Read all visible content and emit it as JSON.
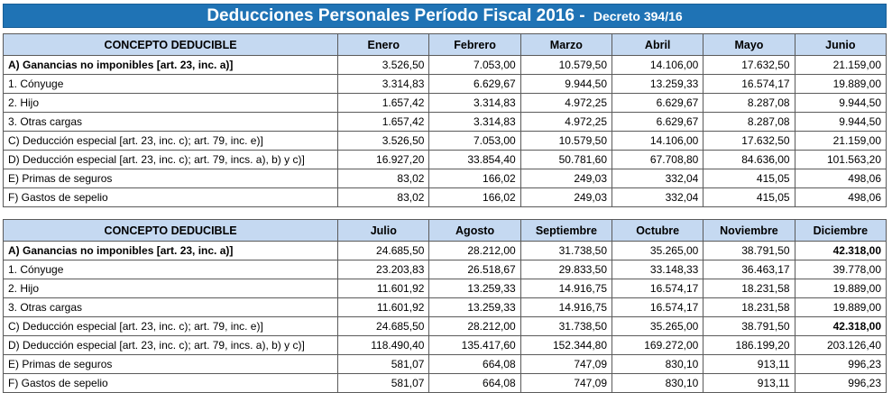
{
  "title": {
    "main": "Deducciones Personales Período Fiscal 2016 - ",
    "sub": "Decreto 394/16"
  },
  "concept_header": "CONCEPTO DEDUCIBLE",
  "concepts": [
    "A) Ganancias no imponibles [art. 23, inc. a)]",
    "1. Cónyuge",
    "2. Hijo",
    "3. Otras cargas",
    "C) Deducción especial [art. 23, inc. c); art. 79, inc. e)]",
    "D) Deducción especial [art. 23, inc. c); art. 79, incs. a), b) y c)]",
    "E) Primas de seguros",
    "F) Gastos de sepelio"
  ],
  "table1": {
    "months": [
      "Enero",
      "Febrero",
      "Marzo",
      "Abril",
      "Mayo",
      "Junio"
    ],
    "rows": [
      [
        "3.526,50",
        "7.053,00",
        "10.579,50",
        "14.106,00",
        "17.632,50",
        "21.159,00"
      ],
      [
        "3.314,83",
        "6.629,67",
        "9.944,50",
        "13.259,33",
        "16.574,17",
        "19.889,00"
      ],
      [
        "1.657,42",
        "3.314,83",
        "4.972,25",
        "6.629,67",
        "8.287,08",
        "9.944,50"
      ],
      [
        "1.657,42",
        "3.314,83",
        "4.972,25",
        "6.629,67",
        "8.287,08",
        "9.944,50"
      ],
      [
        "3.526,50",
        "7.053,00",
        "10.579,50",
        "14.106,00",
        "17.632,50",
        "21.159,00"
      ],
      [
        "16.927,20",
        "33.854,40",
        "50.781,60",
        "67.708,80",
        "84.636,00",
        "101.563,20"
      ],
      [
        "83,02",
        "166,02",
        "249,03",
        "332,04",
        "415,05",
        "498,06"
      ],
      [
        "83,02",
        "166,02",
        "249,03",
        "332,04",
        "415,05",
        "498,06"
      ]
    ]
  },
  "table2": {
    "months": [
      "Julio",
      "Agosto",
      "Septiembre",
      "Octubre",
      "Noviembre",
      "Diciembre"
    ],
    "rows": [
      [
        "24.685,50",
        "28.212,00",
        "31.738,50",
        "35.265,00",
        "38.791,50",
        "42.318,00"
      ],
      [
        "23.203,83",
        "26.518,67",
        "29.833,50",
        "33.148,33",
        "36.463,17",
        "39.778,00"
      ],
      [
        "11.601,92",
        "13.259,33",
        "14.916,75",
        "16.574,17",
        "18.231,58",
        "19.889,00"
      ],
      [
        "11.601,92",
        "13.259,33",
        "14.916,75",
        "16.574,17",
        "18.231,58",
        "19.889,00"
      ],
      [
        "24.685,50",
        "28.212,00",
        "31.738,50",
        "35.265,00",
        "38.791,50",
        "42.318,00"
      ],
      [
        "118.490,40",
        "135.417,60",
        "152.344,80",
        "169.272,00",
        "186.199,20",
        "203.126,40"
      ],
      [
        "581,07",
        "664,08",
        "747,09",
        "830,10",
        "913,11",
        "996,23"
      ],
      [
        "581,07",
        "664,08",
        "747,09",
        "830,10",
        "913,11",
        "996,23"
      ]
    ]
  },
  "colors": {
    "title_bg": "#1f73b5",
    "header_bg": "#c5d9f1",
    "title_text": "#ffffff"
  }
}
